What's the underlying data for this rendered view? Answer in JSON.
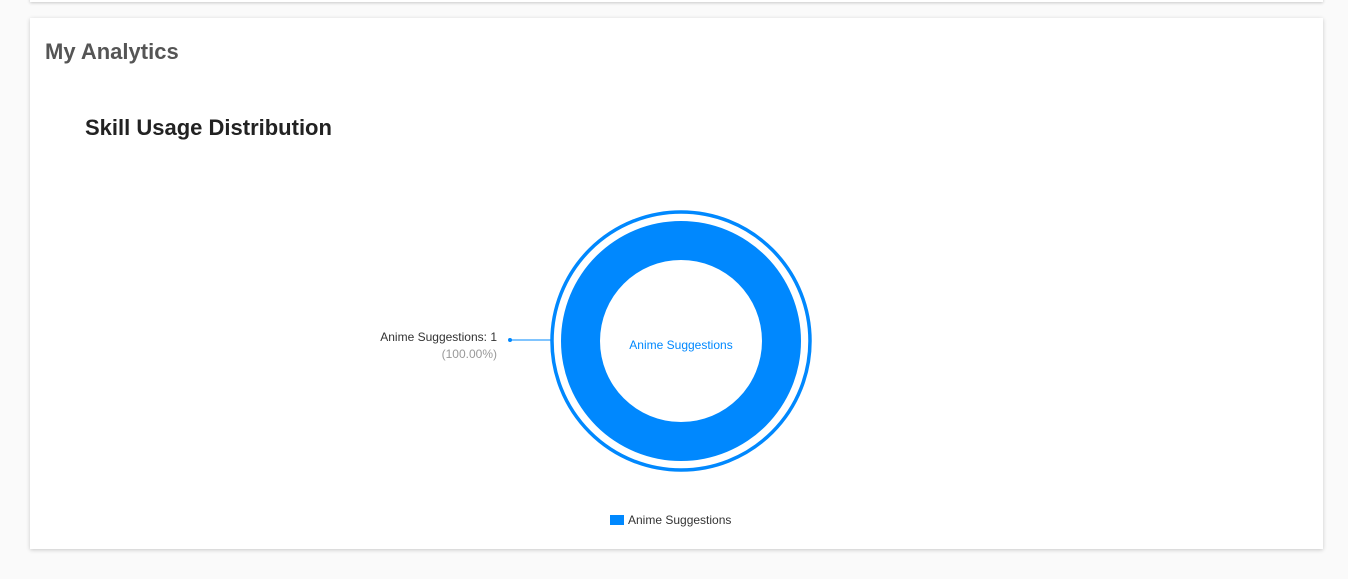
{
  "section_title": "My Analytics",
  "chart_data": {
    "type": "pie",
    "variant": "donut",
    "title": "Skill Usage Distribution",
    "slices": [
      {
        "name": "Anime Suggestions",
        "value": 1,
        "percent": "100.00%",
        "label": "Anime Suggestions: 1",
        "percent_label": "(100.00%)",
        "color": "#0088fe"
      }
    ],
    "center_label": "Anime Suggestions",
    "legend": {
      "position": "bottom",
      "entries": [
        "Anime Suggestions"
      ]
    }
  }
}
